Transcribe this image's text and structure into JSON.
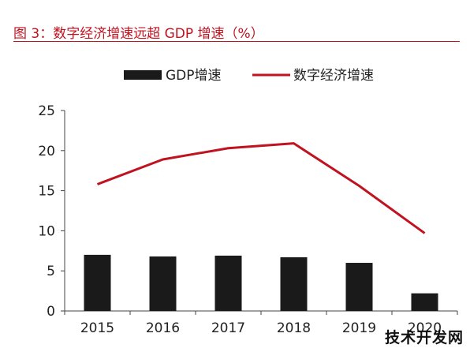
{
  "figure": {
    "title": "图 3：数字经济增速远超 GDP 增速（%）"
  },
  "chart_data": {
    "type": "bar+line",
    "categories": [
      "2015",
      "2016",
      "2017",
      "2018",
      "2019",
      "2020"
    ],
    "series": [
      {
        "name": "GDP增速",
        "type": "bar",
        "color": "#1a1a1a",
        "values": [
          7.0,
          6.8,
          6.9,
          6.7,
          6.0,
          2.2
        ]
      },
      {
        "name": "数字经济增速",
        "type": "line",
        "color": "#c0121f",
        "values": [
          15.8,
          18.9,
          20.3,
          20.9,
          15.6,
          9.7
        ]
      }
    ],
    "ylim": [
      0,
      25
    ],
    "yticks": [
      "0",
      "5",
      "10",
      "15",
      "20",
      "25"
    ],
    "legend": "top",
    "grid": false
  },
  "watermark": "技术开发网"
}
